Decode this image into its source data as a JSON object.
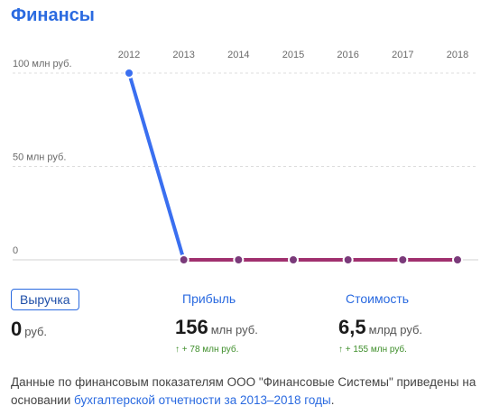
{
  "title": "Финансы",
  "colors": {
    "accent": "#2a6ae0",
    "line_revenue": "#3a6ff0",
    "line_flat": "#a0306e",
    "point": "#7a3a7a",
    "positive": "#3e8e2a"
  },
  "chart_data": {
    "type": "line",
    "x": [
      "2012",
      "2013",
      "2014",
      "2015",
      "2016",
      "2017",
      "2018"
    ],
    "series": [
      {
        "values": [
          100,
          0,
          0,
          0,
          0,
          0,
          0
        ]
      }
    ],
    "y_ticks": [
      "100 млн руб.",
      "50 млн руб.",
      "0"
    ],
    "ylim": [
      0,
      100
    ],
    "grid": true
  },
  "metrics": [
    {
      "label": "Выручка",
      "value": "0",
      "unit": "руб.",
      "change": ""
    },
    {
      "label": "Прибыль",
      "value": "156",
      "unit": "млн руб.",
      "change": "↑ + 78 млн руб."
    },
    {
      "label": "Стоимость",
      "value": "6,5",
      "unit": "млрд руб.",
      "change": "↑ + 155 млн руб."
    }
  ],
  "note": {
    "text": "Данные по финансовым показателям ООО \"Финансовые Системы\" приведены на основании ",
    "link": "бухгалтерской отчетности за 2013–2018 годы",
    "end": "."
  }
}
